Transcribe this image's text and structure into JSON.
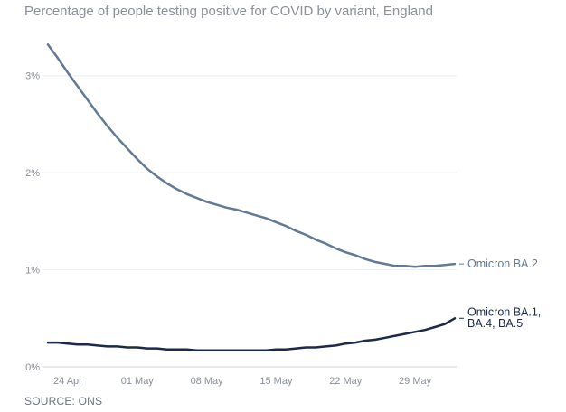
{
  "chart_data": {
    "type": "line",
    "title": "Percentage of people testing positive for COVID by variant, England",
    "source": "SOURCE: ONS",
    "xlabel": "",
    "ylabel": "",
    "x_ticks": [
      "24 Apr",
      "01 May",
      "08 May",
      "15 May",
      "22 May",
      "29 May"
    ],
    "x_range": [
      "2022-04-22",
      "2022-06-02"
    ],
    "ylim": [
      0,
      3.5
    ],
    "y_ticks": [
      {
        "value": 0,
        "label": "0%"
      },
      {
        "value": 1,
        "label": "1%"
      },
      {
        "value": 2,
        "label": "2%"
      },
      {
        "value": 3,
        "label": "3%"
      }
    ],
    "grid": "horizontal",
    "series": [
      {
        "name": "Omicron BA.2",
        "color": "#627a95",
        "points": [
          [
            "2022-04-22",
            3.32
          ],
          [
            "2022-04-23",
            3.18
          ],
          [
            "2022-04-24",
            3.03
          ],
          [
            "2022-04-25",
            2.89
          ],
          [
            "2022-04-26",
            2.75
          ],
          [
            "2022-04-27",
            2.61
          ],
          [
            "2022-04-28",
            2.48
          ],
          [
            "2022-04-29",
            2.36
          ],
          [
            "2022-04-30",
            2.25
          ],
          [
            "2022-05-01",
            2.14
          ],
          [
            "2022-05-02",
            2.04
          ],
          [
            "2022-05-03",
            1.96
          ],
          [
            "2022-05-04",
            1.89
          ],
          [
            "2022-05-05",
            1.83
          ],
          [
            "2022-05-06",
            1.78
          ],
          [
            "2022-05-07",
            1.74
          ],
          [
            "2022-05-08",
            1.7
          ],
          [
            "2022-05-09",
            1.67
          ],
          [
            "2022-05-10",
            1.64
          ],
          [
            "2022-05-11",
            1.62
          ],
          [
            "2022-05-12",
            1.59
          ],
          [
            "2022-05-13",
            1.56
          ],
          [
            "2022-05-14",
            1.53
          ],
          [
            "2022-05-15",
            1.49
          ],
          [
            "2022-05-16",
            1.45
          ],
          [
            "2022-05-17",
            1.4
          ],
          [
            "2022-05-18",
            1.36
          ],
          [
            "2022-05-19",
            1.31
          ],
          [
            "2022-05-20",
            1.27
          ],
          [
            "2022-05-21",
            1.22
          ],
          [
            "2022-05-22",
            1.18
          ],
          [
            "2022-05-23",
            1.15
          ],
          [
            "2022-05-24",
            1.11
          ],
          [
            "2022-05-25",
            1.08
          ],
          [
            "2022-05-26",
            1.06
          ],
          [
            "2022-05-27",
            1.04
          ],
          [
            "2022-05-28",
            1.04
          ],
          [
            "2022-05-29",
            1.03
          ],
          [
            "2022-05-30",
            1.04
          ],
          [
            "2022-05-31",
            1.04
          ],
          [
            "2022-06-01",
            1.05
          ],
          [
            "2022-06-02",
            1.06
          ]
        ]
      },
      {
        "name": "Omicron BA.1, BA.4, BA.5",
        "name_lines": [
          "Omicron BA.1,",
          "BA.4, BA.5"
        ],
        "color": "#1b2a4a",
        "points": [
          [
            "2022-04-22",
            0.25
          ],
          [
            "2022-04-23",
            0.25
          ],
          [
            "2022-04-24",
            0.24
          ],
          [
            "2022-04-25",
            0.23
          ],
          [
            "2022-04-26",
            0.23
          ],
          [
            "2022-04-27",
            0.22
          ],
          [
            "2022-04-28",
            0.21
          ],
          [
            "2022-04-29",
            0.21
          ],
          [
            "2022-04-30",
            0.2
          ],
          [
            "2022-05-01",
            0.2
          ],
          [
            "2022-05-02",
            0.19
          ],
          [
            "2022-05-03",
            0.19
          ],
          [
            "2022-05-04",
            0.18
          ],
          [
            "2022-05-05",
            0.18
          ],
          [
            "2022-05-06",
            0.18
          ],
          [
            "2022-05-07",
            0.17
          ],
          [
            "2022-05-08",
            0.17
          ],
          [
            "2022-05-09",
            0.17
          ],
          [
            "2022-05-10",
            0.17
          ],
          [
            "2022-05-11",
            0.17
          ],
          [
            "2022-05-12",
            0.17
          ],
          [
            "2022-05-13",
            0.17
          ],
          [
            "2022-05-14",
            0.17
          ],
          [
            "2022-05-15",
            0.18
          ],
          [
            "2022-05-16",
            0.18
          ],
          [
            "2022-05-17",
            0.19
          ],
          [
            "2022-05-18",
            0.2
          ],
          [
            "2022-05-19",
            0.2
          ],
          [
            "2022-05-20",
            0.21
          ],
          [
            "2022-05-21",
            0.22
          ],
          [
            "2022-05-22",
            0.24
          ],
          [
            "2022-05-23",
            0.25
          ],
          [
            "2022-05-24",
            0.27
          ],
          [
            "2022-05-25",
            0.28
          ],
          [
            "2022-05-26",
            0.3
          ],
          [
            "2022-05-27",
            0.32
          ],
          [
            "2022-05-28",
            0.34
          ],
          [
            "2022-05-29",
            0.36
          ],
          [
            "2022-05-30",
            0.38
          ],
          [
            "2022-05-31",
            0.41
          ],
          [
            "2022-06-01",
            0.44
          ],
          [
            "2022-06-02",
            0.5
          ]
        ]
      }
    ]
  }
}
